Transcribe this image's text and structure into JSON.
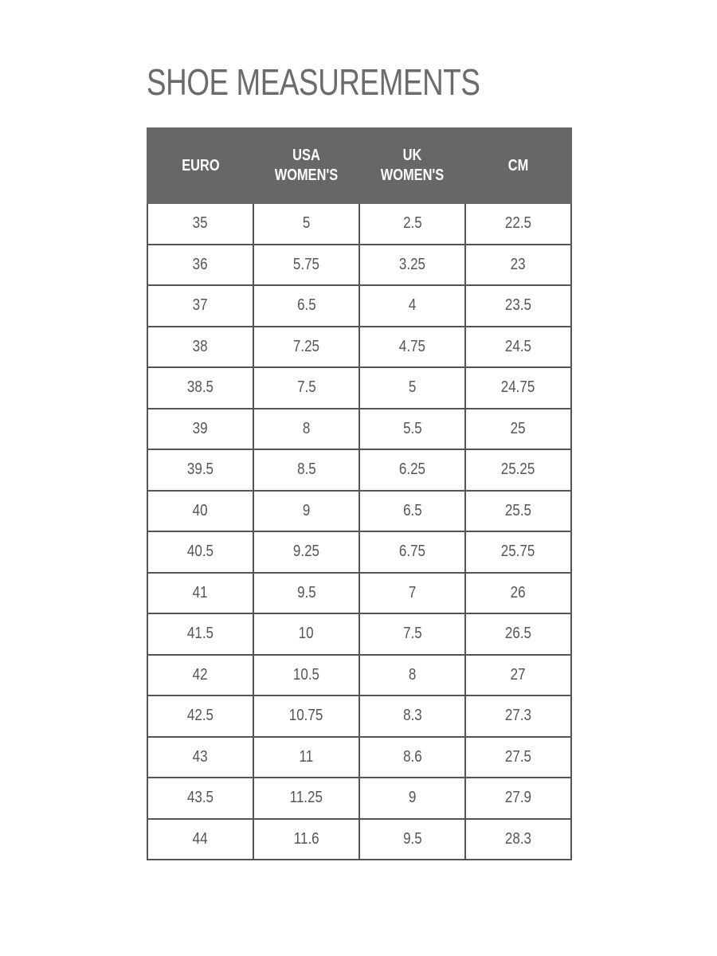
{
  "title": "SHOE MEASUREMENTS",
  "colors": {
    "header_bg": "#676767",
    "header_text": "#ffffff",
    "border": "#555555",
    "title": "#6b6b6b"
  },
  "table": {
    "headers": [
      [
        "EURO"
      ],
      [
        "USA",
        "WOMEN'S"
      ],
      [
        "UK",
        "WOMEN'S"
      ],
      [
        "CM"
      ]
    ],
    "rows": [
      [
        "35",
        "5",
        "2.5",
        "22.5"
      ],
      [
        "36",
        "5.75",
        "3.25",
        "23"
      ],
      [
        "37",
        "6.5",
        "4",
        "23.5"
      ],
      [
        "38",
        "7.25",
        "4.75",
        "24.5"
      ],
      [
        "38.5",
        "7.5",
        "5",
        "24.75"
      ],
      [
        "39",
        "8",
        "5.5",
        "25"
      ],
      [
        "39.5",
        "8.5",
        "6.25",
        "25.25"
      ],
      [
        "40",
        "9",
        "6.5",
        "25.5"
      ],
      [
        "40.5",
        "9.25",
        "6.75",
        "25.75"
      ],
      [
        "41",
        "9.5",
        "7",
        "26"
      ],
      [
        "41.5",
        "10",
        "7.5",
        "26.5"
      ],
      [
        "42",
        "10.5",
        "8",
        "27"
      ],
      [
        "42.5",
        "10.75",
        "8.3",
        "27.3"
      ],
      [
        "43",
        "11",
        "8.6",
        "27.5"
      ],
      [
        "43.5",
        "11.25",
        "9",
        "27.9"
      ],
      [
        "44",
        "11.6",
        "9.5",
        "28.3"
      ]
    ]
  }
}
